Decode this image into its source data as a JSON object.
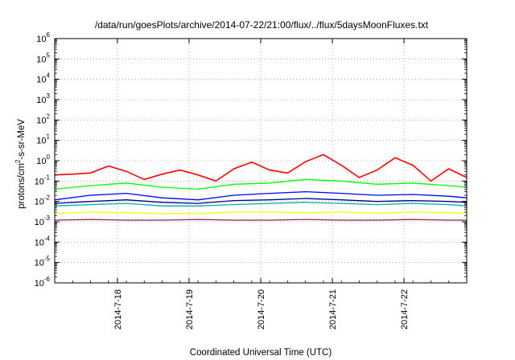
{
  "chart_data": {
    "type": "line",
    "title": "/data/run/goesPlots/archive/2014-07-22/21:00/flux/../flux/5daysMoonFluxes.txt",
    "xlabel": "Coordinated Universal Time (UTC)",
    "ylabel": "protons/cm²-s-sr-MeV",
    "ylabel_parts": {
      "pre": "protons/cm",
      "sup": "2",
      "post": "-s-sr-MeV"
    },
    "yscale": "log",
    "ylim": [
      1e-06,
      1000000.0
    ],
    "xlim": [
      "2014-07-17T03:00",
      "2014-07-22T21:00"
    ],
    "grid": true,
    "y_ticks": [
      {
        "value": 1000000.0,
        "base": "10",
        "exp": "6"
      },
      {
        "value": 100000.0,
        "base": "10",
        "exp": "5"
      },
      {
        "value": 10000.0,
        "base": "10",
        "exp": "4"
      },
      {
        "value": 1000.0,
        "base": "10",
        "exp": "3"
      },
      {
        "value": 100.0,
        "base": "10",
        "exp": "2"
      },
      {
        "value": 10.0,
        "base": "10",
        "exp": "1"
      },
      {
        "value": 1.0,
        "base": "10",
        "exp": "0"
      },
      {
        "value": 0.1,
        "base": "10",
        "exp": "-1"
      },
      {
        "value": 0.01,
        "base": "10",
        "exp": "-2"
      },
      {
        "value": 0.001,
        "base": "10",
        "exp": "-3"
      },
      {
        "value": 0.0001,
        "base": "10",
        "exp": "-4"
      },
      {
        "value": 1e-05,
        "base": "10",
        "exp": "-5"
      },
      {
        "value": 1e-06,
        "base": "10",
        "exp": "-6"
      }
    ],
    "x_ticks": [
      {
        "value": "2014-07-18T00:00",
        "label": "2014-7-18"
      },
      {
        "value": "2014-07-19T00:00",
        "label": "2014-7-19"
      },
      {
        "value": "2014-07-20T00:00",
        "label": "2014-7-20"
      },
      {
        "value": "2014-07-21T00:00",
        "label": "2014-7-21"
      },
      {
        "value": "2014-07-22T00:00",
        "label": "2014-7-22"
      }
    ],
    "series": [
      {
        "color": "#ff0000",
        "x": [
          "2014-07-17T03:00",
          "2014-07-17T09:00",
          "2014-07-17T15:00",
          "2014-07-17T21:00",
          "2014-07-18T03:00",
          "2014-07-18T09:00",
          "2014-07-18T15:00",
          "2014-07-18T21:00",
          "2014-07-19T03:00",
          "2014-07-19T09:00",
          "2014-07-19T15:00",
          "2014-07-19T21:00",
          "2014-07-20T03:00",
          "2014-07-20T09:00",
          "2014-07-20T15:00",
          "2014-07-20T21:00",
          "2014-07-21T03:00",
          "2014-07-21T09:00",
          "2014-07-21T15:00",
          "2014-07-21T21:00",
          "2014-07-22T03:00",
          "2014-07-22T09:00",
          "2014-07-22T15:00",
          "2014-07-22T21:00"
        ],
        "values": [
          0.2,
          0.22,
          0.25,
          0.55,
          0.3,
          0.12,
          0.22,
          0.35,
          0.2,
          0.1,
          0.4,
          0.85,
          0.35,
          0.25,
          0.9,
          2.0,
          0.6,
          0.15,
          0.35,
          1.4,
          0.6,
          0.1,
          0.4,
          0.15
        ]
      },
      {
        "color": "#00ff00",
        "x": [
          "2014-07-17T03:00",
          "2014-07-17T15:00",
          "2014-07-18T03:00",
          "2014-07-18T15:00",
          "2014-07-19T03:00",
          "2014-07-19T15:00",
          "2014-07-20T03:00",
          "2014-07-20T15:00",
          "2014-07-21T03:00",
          "2014-07-21T15:00",
          "2014-07-22T03:00",
          "2014-07-22T15:00",
          "2014-07-22T21:00"
        ],
        "values": [
          0.04,
          0.06,
          0.08,
          0.05,
          0.04,
          0.07,
          0.08,
          0.12,
          0.1,
          0.07,
          0.08,
          0.06,
          0.05
        ]
      },
      {
        "color": "#0000ff",
        "x": [
          "2014-07-17T03:00",
          "2014-07-17T15:00",
          "2014-07-18T03:00",
          "2014-07-18T15:00",
          "2014-07-19T03:00",
          "2014-07-19T15:00",
          "2014-07-20T03:00",
          "2014-07-20T15:00",
          "2014-07-21T03:00",
          "2014-07-21T15:00",
          "2014-07-22T03:00",
          "2014-07-22T15:00",
          "2014-07-22T21:00"
        ],
        "values": [
          0.012,
          0.02,
          0.025,
          0.015,
          0.012,
          0.02,
          0.025,
          0.03,
          0.025,
          0.02,
          0.022,
          0.018,
          0.015
        ]
      },
      {
        "color": "#00008b",
        "x": [
          "2014-07-17T03:00",
          "2014-07-17T15:00",
          "2014-07-18T03:00",
          "2014-07-18T15:00",
          "2014-07-19T03:00",
          "2014-07-19T15:00",
          "2014-07-20T03:00",
          "2014-07-20T15:00",
          "2014-07-21T03:00",
          "2014-07-21T15:00",
          "2014-07-22T03:00",
          "2014-07-22T15:00",
          "2014-07-22T21:00"
        ],
        "values": [
          0.008,
          0.01,
          0.012,
          0.009,
          0.008,
          0.011,
          0.012,
          0.014,
          0.012,
          0.01,
          0.011,
          0.01,
          0.009
        ]
      },
      {
        "color": "#00b0b0",
        "x": [
          "2014-07-17T03:00",
          "2014-07-17T15:00",
          "2014-07-18T03:00",
          "2014-07-18T15:00",
          "2014-07-19T03:00",
          "2014-07-19T15:00",
          "2014-07-20T03:00",
          "2014-07-20T15:00",
          "2014-07-21T03:00",
          "2014-07-21T15:00",
          "2014-07-22T03:00",
          "2014-07-22T15:00",
          "2014-07-22T21:00"
        ],
        "values": [
          0.006,
          0.007,
          0.008,
          0.006,
          0.006,
          0.007,
          0.008,
          0.009,
          0.008,
          0.007,
          0.008,
          0.007,
          0.006
        ]
      },
      {
        "color": "#ffff00",
        "x": [
          "2014-07-17T03:00",
          "2014-07-17T15:00",
          "2014-07-18T03:00",
          "2014-07-18T15:00",
          "2014-07-19T03:00",
          "2014-07-19T15:00",
          "2014-07-20T03:00",
          "2014-07-20T15:00",
          "2014-07-21T03:00",
          "2014-07-21T15:00",
          "2014-07-22T03:00",
          "2014-07-22T15:00",
          "2014-07-22T21:00"
        ],
        "values": [
          0.0025,
          0.003,
          0.0028,
          0.0025,
          0.0025,
          0.003,
          0.003,
          0.0028,
          0.003,
          0.0026,
          0.003,
          0.0028,
          0.0025
        ]
      },
      {
        "color": "#8b2252",
        "x": [
          "2014-07-17T03:00",
          "2014-07-17T15:00",
          "2014-07-18T03:00",
          "2014-07-18T15:00",
          "2014-07-19T03:00",
          "2014-07-19T15:00",
          "2014-07-20T03:00",
          "2014-07-20T15:00",
          "2014-07-21T03:00",
          "2014-07-21T15:00",
          "2014-07-22T03:00",
          "2014-07-22T15:00",
          "2014-07-22T21:00"
        ],
        "values": [
          0.0012,
          0.0013,
          0.0012,
          0.0012,
          0.0013,
          0.0012,
          0.0012,
          0.0013,
          0.0012,
          0.0012,
          0.0013,
          0.0012,
          0.0012
        ]
      }
    ]
  }
}
